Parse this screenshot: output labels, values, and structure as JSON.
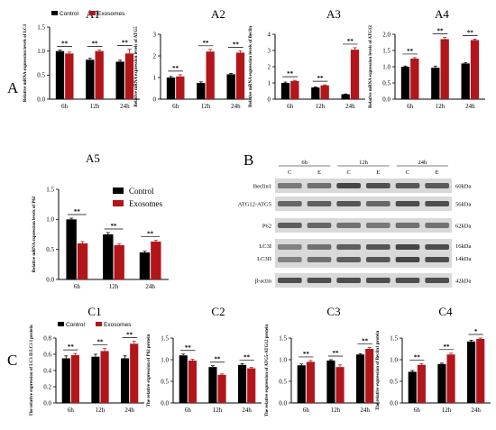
{
  "figure": {
    "panel_letters": [
      "A",
      "B",
      "C"
    ]
  },
  "colors": {
    "control": "#000000",
    "exosomes": "#b2161b",
    "blot_band": "#2a2a2a",
    "blot_bg": "#d9d9d9"
  },
  "legend": {
    "control": "Control",
    "exosomes": "Exosomes"
  },
  "chart_data": [
    {
      "id": "A1",
      "type": "bar",
      "title": "A1",
      "categories": [
        "6h",
        "12h",
        "24h"
      ],
      "ylabel": "Relative mRNA expression levels of LC3",
      "ylim": [
        0,
        1.5
      ],
      "yticks": [
        "0.0",
        "0.5",
        "1.0",
        "1.5"
      ],
      "series": [
        {
          "name": "Control",
          "values": [
            1.0,
            0.82,
            0.78
          ],
          "errors": [
            0.02,
            0.03,
            0.03
          ]
        },
        {
          "name": "Exosomes",
          "values": [
            0.95,
            1.0,
            0.95
          ],
          "errors": [
            0.03,
            0.02,
            0.09
          ]
        }
      ],
      "significance": [
        "**",
        "**",
        "**"
      ],
      "legend": "top-left"
    },
    {
      "id": "A2",
      "type": "bar",
      "title": "A2",
      "categories": [
        "6h",
        "12h",
        "24h"
      ],
      "ylabel": "Relative mRNA expression levels of ATG5",
      "ylim": [
        0,
        3
      ],
      "yticks": [
        "0",
        "1",
        "2",
        "3"
      ],
      "series": [
        {
          "name": "Control",
          "values": [
            1.0,
            0.75,
            1.15
          ],
          "errors": [
            0.05,
            0.05,
            0.04
          ]
        },
        {
          "name": "Exosomes",
          "values": [
            1.05,
            2.2,
            2.15
          ],
          "errors": [
            0.08,
            0.1,
            0.08
          ]
        }
      ],
      "significance": [
        "**",
        "**",
        "**"
      ]
    },
    {
      "id": "A3",
      "type": "bar",
      "title": "A3",
      "categories": [
        "6h",
        "12h",
        "24h"
      ],
      "ylabel": "Relative mRNA expression levels of Beclin",
      "ylim": [
        0,
        4
      ],
      "yticks": [
        "0",
        "1",
        "2",
        "3",
        "4"
      ],
      "series": [
        {
          "name": "Control",
          "values": [
            1.0,
            0.72,
            0.3
          ],
          "errors": [
            0.05,
            0.03,
            0.02
          ]
        },
        {
          "name": "Exosomes",
          "values": [
            1.12,
            0.85,
            3.05
          ],
          "errors": [
            0.04,
            0.03,
            0.12
          ]
        }
      ],
      "significance": [
        "**",
        "**",
        "**"
      ]
    },
    {
      "id": "A4",
      "type": "bar",
      "title": "A4",
      "categories": [
        "6h",
        "12h",
        "24h"
      ],
      "ylabel": "Relative mRNA expression levels of ATG12",
      "ylim": [
        0,
        2.0
      ],
      "yticks": [
        "0.0",
        "0.5",
        "1.0",
        "1.5",
        "2.0"
      ],
      "series": [
        {
          "name": "Control",
          "values": [
            1.0,
            0.97,
            1.1
          ],
          "errors": [
            0.02,
            0.05,
            0.02
          ]
        },
        {
          "name": "Exosomes",
          "values": [
            1.25,
            1.85,
            1.82
          ],
          "errors": [
            0.03,
            0.05,
            0.03
          ]
        }
      ],
      "significance": [
        "**",
        "**",
        "**"
      ]
    },
    {
      "id": "A5",
      "type": "bar",
      "title": "A5",
      "categories": [
        "6h",
        "12h",
        "24h"
      ],
      "ylabel": "Relative mRNA expression levels of P62",
      "ylim": [
        0,
        1.5
      ],
      "yticks": [
        "0.0",
        "0.5",
        "1.0",
        "1.5"
      ],
      "series": [
        {
          "name": "Control",
          "values": [
            1.0,
            0.75,
            0.45
          ],
          "errors": [
            0.02,
            0.03,
            0.02
          ]
        },
        {
          "name": "Exosomes",
          "values": [
            0.6,
            0.57,
            0.63
          ],
          "errors": [
            0.03,
            0.02,
            0.02
          ]
        }
      ],
      "significance": [
        "**",
        "**",
        "**"
      ],
      "legend": "top-right"
    },
    {
      "id": "C1",
      "type": "bar",
      "title": "C1",
      "categories": [
        "6h",
        "12h",
        "24h"
      ],
      "ylabel": "The relative expression of LC3 II/LC3 I protein",
      "ylim": [
        0,
        0.8
      ],
      "yticks": [
        "0.0",
        "0.2",
        "0.4",
        "0.6",
        "0.8"
      ],
      "series": [
        {
          "name": "Control",
          "values": [
            0.55,
            0.57,
            0.55
          ],
          "errors": [
            0.03,
            0.03,
            0.03
          ]
        },
        {
          "name": "Exosomes",
          "values": [
            0.59,
            0.64,
            0.73
          ],
          "errors": [
            0.02,
            0.03,
            0.03
          ]
        }
      ],
      "significance": [
        "**",
        "**",
        "**"
      ],
      "legend": "top-left"
    },
    {
      "id": "C2",
      "type": "bar",
      "title": "C2",
      "categories": [
        "6h",
        "12h",
        "24h"
      ],
      "ylabel": "The relative expression of P62 protein",
      "ylim": [
        0,
        1.5
      ],
      "yticks": [
        "0.0",
        "0.5",
        "1.0",
        "1.5"
      ],
      "series": [
        {
          "name": "Control",
          "values": [
            1.1,
            0.83,
            0.88
          ],
          "errors": [
            0.03,
            0.03,
            0.03
          ]
        },
        {
          "name": "Exosomes",
          "values": [
            0.98,
            0.65,
            0.8
          ],
          "errors": [
            0.03,
            0.02,
            0.02
          ]
        }
      ],
      "significance": [
        "**",
        "**",
        "**"
      ]
    },
    {
      "id": "C3",
      "type": "bar",
      "title": "C3",
      "categories": [
        "6h",
        "12h",
        "24h"
      ],
      "ylabel": "The relative expression of ATG5-ATG12 protein",
      "ylim": [
        0,
        1.5
      ],
      "yticks": [
        "0.0",
        "0.5",
        "1.0",
        "1.5"
      ],
      "series": [
        {
          "name": "Control",
          "values": [
            0.87,
            0.98,
            1.12
          ],
          "errors": [
            0.03,
            0.02,
            0.02
          ]
        },
        {
          "name": "Exosomes",
          "values": [
            0.95,
            0.83,
            1.25
          ],
          "errors": [
            0.03,
            0.05,
            0.03
          ]
        }
      ],
      "significance": [
        "**",
        "**",
        "**"
      ]
    },
    {
      "id": "C4",
      "type": "bar",
      "title": "C4",
      "categories": [
        "6h",
        "12h",
        "24h"
      ],
      "ylabel": "The relative expression of Beclin1 protein",
      "ylim": [
        0,
        1.5
      ],
      "yticks": [
        "0.0",
        "0.5",
        "1.0",
        "1.5"
      ],
      "series": [
        {
          "name": "Control",
          "values": [
            0.72,
            0.9,
            1.42
          ],
          "errors": [
            0.03,
            0.02,
            0.03
          ]
        },
        {
          "name": "Exosomes",
          "values": [
            0.88,
            1.12,
            1.48
          ],
          "errors": [
            0.03,
            0.03,
            0.02
          ]
        }
      ],
      "significance": [
        "**",
        "**",
        "*"
      ]
    }
  ],
  "blot": {
    "timepoints": [
      "6h",
      "12h",
      "24h"
    ],
    "lanes": [
      "C",
      "E",
      "C",
      "E",
      "C",
      "E"
    ],
    "rows": [
      {
        "label": "Beclin1",
        "size": "60kDa",
        "intensity": [
          0.55,
          0.6,
          0.85,
          0.8,
          0.75,
          0.72
        ]
      },
      {
        "label": "ATG12-ATG5",
        "size": "56kDa",
        "intensity": [
          0.65,
          0.7,
          0.75,
          0.65,
          0.8,
          0.8
        ]
      },
      {
        "label": "P62",
        "size": "62kDa",
        "intensity": [
          0.7,
          0.65,
          0.6,
          0.55,
          0.6,
          0.58
        ]
      },
      {
        "label": "LC3I",
        "label2": "LC3II",
        "size": "16kDa",
        "size2": "14kDa",
        "intensity": [
          0.5,
          0.6,
          0.7,
          0.75,
          0.85,
          0.8
        ]
      },
      {
        "label": "β-actin",
        "size": "42kDa",
        "intensity": [
          0.8,
          0.8,
          0.8,
          0.8,
          0.8,
          0.8
        ]
      }
    ]
  }
}
